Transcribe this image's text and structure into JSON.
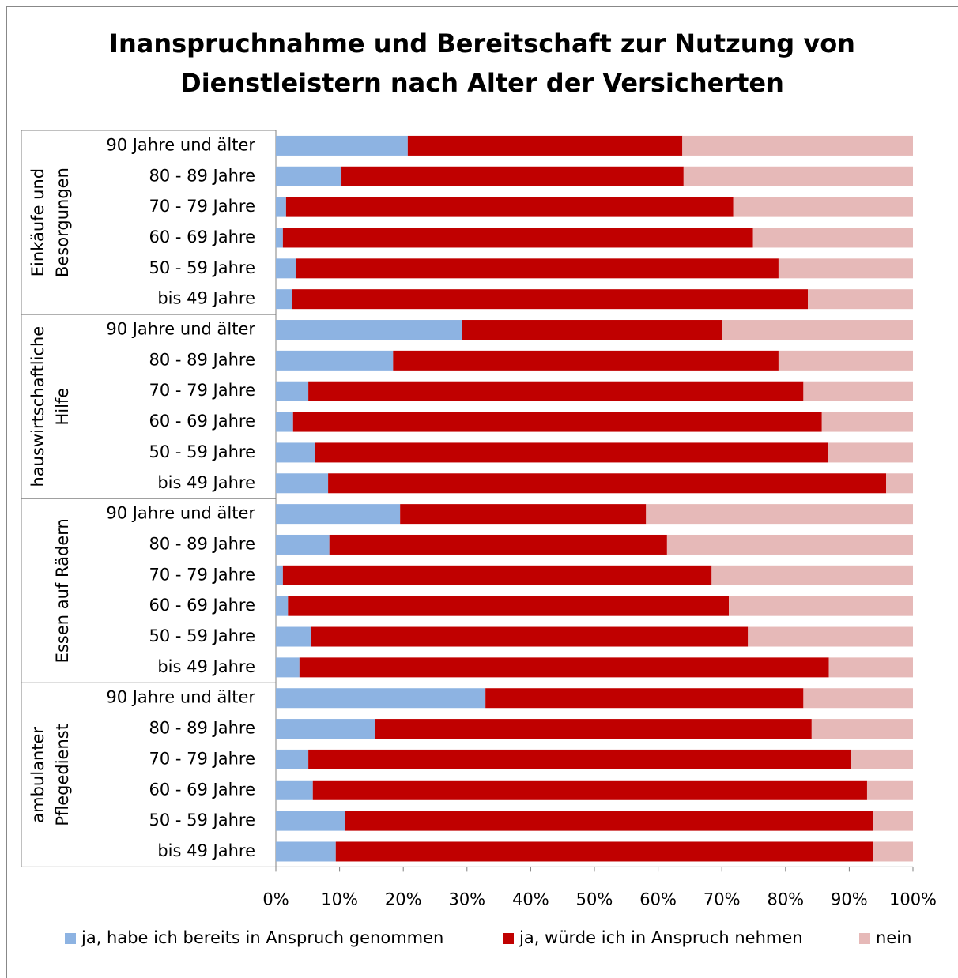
{
  "chart_data": {
    "type": "stacked_barh",
    "title": [
      "Inanspruchnahme und Bereitschaft zur Nutzung von",
      "Dienstleistern nach Alter der Versicherten"
    ],
    "groups": [
      {
        "name": [
          "Einkäufe und",
          "Besorgungen"
        ],
        "categories": [
          "90 Jahre und älter",
          "80 - 89 Jahre",
          "70 - 79 Jahre",
          "60 - 69 Jahre",
          "50 - 59 Jahre",
          "bis 49 Jahre"
        ]
      },
      {
        "name": [
          "hauswirtschaftliche",
          "Hilfe"
        ],
        "categories": [
          "90 Jahre und älter",
          "80 - 89 Jahre",
          "70 - 79 Jahre",
          "60 - 69 Jahre",
          "50 - 59 Jahre",
          "bis 49 Jahre"
        ]
      },
      {
        "name": [
          "Essen auf Rädern"
        ],
        "categories": [
          "90 Jahre und älter",
          "80 - 89 Jahre",
          "70 - 79 Jahre",
          "60 - 69 Jahre",
          "50 - 59 Jahre",
          "bis 49 Jahre"
        ]
      },
      {
        "name": [
          "ambulanter",
          "Pflegedienst"
        ],
        "categories": [
          "90 Jahre und älter",
          "80 - 89 Jahre",
          "70 - 79 Jahre",
          "60 - 69 Jahre",
          "50 - 59 Jahre",
          "bis 49 Jahre"
        ]
      }
    ],
    "series": [
      {
        "name": "ja, habe ich bereits in Anspruch genommen",
        "color": "#8db3e2",
        "values": [
          20.7,
          10.3,
          1.6,
          1.1,
          3.1,
          2.5,
          29.2,
          18.4,
          5.1,
          2.7,
          6.1,
          8.2,
          19.5,
          8.4,
          1.1,
          1.9,
          5.5,
          3.7,
          32.9,
          15.6,
          5.1,
          5.8,
          10.9,
          9.4
        ]
      },
      {
        "name": "ja, würde ich in Anspruch nehmen",
        "color": "#c00000",
        "values": [
          43.1,
          53.7,
          70.2,
          73.8,
          75.8,
          81.0,
          40.8,
          60.5,
          77.7,
          83.0,
          80.6,
          87.6,
          38.6,
          53.0,
          67.3,
          69.2,
          68.6,
          83.1,
          49.9,
          68.5,
          85.2,
          87.0,
          82.9,
          84.4
        ]
      },
      {
        "name": "nein",
        "color": "#e6b9b8",
        "values": [
          36.2,
          36.0,
          28.2,
          25.1,
          21.1,
          16.5,
          30.0,
          21.1,
          17.2,
          14.3,
          13.3,
          4.2,
          41.9,
          38.6,
          31.6,
          28.9,
          25.9,
          13.2,
          17.2,
          15.9,
          9.7,
          7.2,
          6.2,
          6.2
        ]
      }
    ],
    "xlim": [
      0,
      100
    ],
    "xticks": [
      {
        "value": 0,
        "label": "0%"
      },
      {
        "value": 10,
        "label": "10%"
      },
      {
        "value": 20,
        "label": "20%"
      },
      {
        "value": 30,
        "label": "30%"
      },
      {
        "value": 40,
        "label": "40%"
      },
      {
        "value": 50,
        "label": "50%"
      },
      {
        "value": 60,
        "label": "60%"
      },
      {
        "value": 70,
        "label": "70%"
      },
      {
        "value": 80,
        "label": "80%"
      },
      {
        "value": 90,
        "label": "90%"
      },
      {
        "value": 100,
        "label": "100%"
      }
    ],
    "legend": "bottom"
  }
}
